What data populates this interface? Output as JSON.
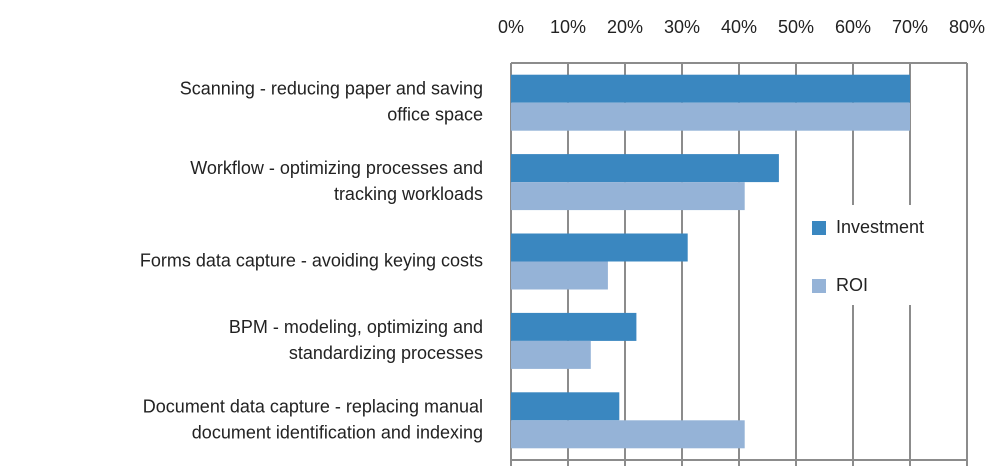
{
  "chart_data": {
    "type": "barh",
    "categories": [
      [
        "Scanning - reducing paper and saving",
        "office space"
      ],
      [
        "Workflow - optimizing processes and",
        "tracking workloads"
      ],
      [
        "Forms data capture - avoiding keying costs"
      ],
      [
        "BPM - modeling, optimizing and",
        "standardizing processes"
      ],
      [
        "Document data capture - replacing manual",
        "document identification and indexing"
      ]
    ],
    "series": [
      {
        "name": "Investment",
        "color": "#3a87c0",
        "values": [
          70,
          47,
          31,
          22,
          19
        ]
      },
      {
        "name": "ROI",
        "color": "#95b3d7",
        "values": [
          70,
          41,
          17,
          14,
          41
        ]
      }
    ],
    "xlim": [
      0,
      80
    ],
    "xticks": [
      {
        "value": 0,
        "label": "0%"
      },
      {
        "value": 10,
        "label": "10%"
      },
      {
        "value": 20,
        "label": "20%"
      },
      {
        "value": 30,
        "label": "30%"
      },
      {
        "value": 40,
        "label": "40%"
      },
      {
        "value": 50,
        "label": "50%"
      },
      {
        "value": 60,
        "label": "60%"
      },
      {
        "value": 70,
        "label": "70%"
      },
      {
        "value": 80,
        "label": "80%"
      }
    ],
    "grid": true,
    "legend": "right"
  }
}
